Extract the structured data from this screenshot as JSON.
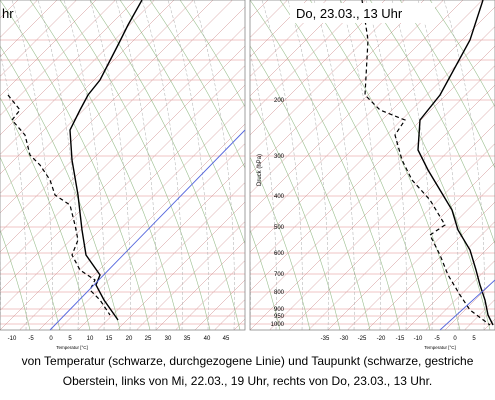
{
  "left_panel": {
    "title": "hr",
    "x_ticks": [
      "-10",
      "-5",
      "0",
      "5",
      "10",
      "15",
      "20",
      "25",
      "30",
      "35",
      "40",
      "45"
    ],
    "x_label": "Temperatur [°C]"
  },
  "right_panel": {
    "title": "Do, 23.03., 13 Uhr",
    "y_label": "Druck (hPa)",
    "y_ticks": [
      "200",
      "300",
      "400",
      "500",
      "600",
      "700",
      "800",
      "900",
      "950",
      "1000"
    ],
    "x_ticks": [
      "-35",
      "-30",
      "-25",
      "-20",
      "-15",
      "-10",
      "-5",
      "0",
      "5"
    ],
    "x_label": "Temperatur [°C]"
  },
  "caption": {
    "lines": [
      "von Temperatur (schwarze, durchgezogene Linie) und Taupunkt (schwarze, gestriche",
      "Oberstein, links von Mi, 22.03., 19 Uhr, rechts von Do, 23.03., 13 Uhr."
    ]
  }
}
